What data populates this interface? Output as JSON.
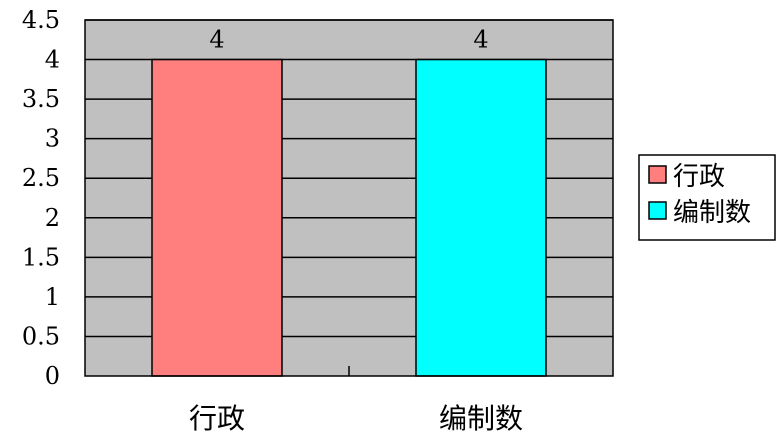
{
  "chart_data": {
    "type": "bar",
    "categories": [
      "行政",
      "编制数"
    ],
    "values": [
      4,
      4
    ],
    "data_labels": [
      "4",
      "4"
    ],
    "ylim": [
      0,
      4.5
    ],
    "yticks": [
      "0",
      "0.5",
      "1",
      "1.5",
      "2",
      "2.5",
      "3",
      "3.5",
      "4",
      "4.5"
    ],
    "legend": {
      "position": "right",
      "items": [
        {
          "label": "行政",
          "color": "#FF7F7F"
        },
        {
          "label": "编制数",
          "color": "#00FFFF"
        }
      ]
    },
    "colors": {
      "plot_background": "#C0C0C0",
      "gridlines": "#000000",
      "bars": [
        "#FF7F7F",
        "#00FFFF"
      ]
    },
    "grid": true
  }
}
